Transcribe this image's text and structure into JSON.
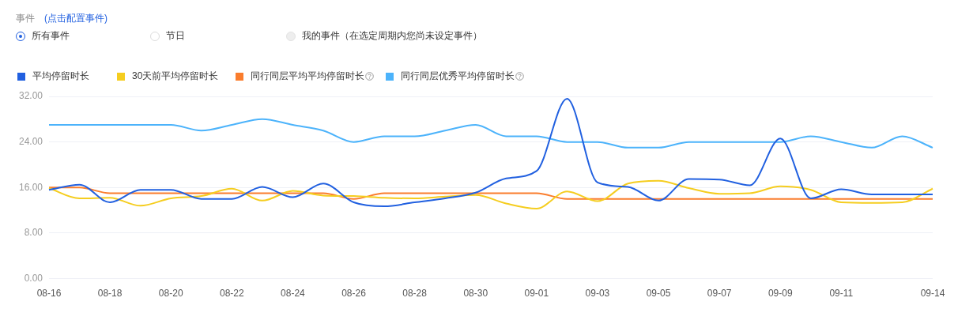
{
  "chart_data": {
    "type": "line",
    "annotations": [
      "事件",
      "(点击配置事件)",
      "所有事件",
      "节日",
      "我的事件（在选定周期内您尚未设定事件）"
    ],
    "categories": [
      "08-16",
      null,
      "08-18",
      null,
      "08-20",
      null,
      "08-22",
      null,
      "08-24",
      null,
      "08-26",
      null,
      "08-28",
      null,
      "08-30",
      null,
      "09-01",
      null,
      "09-03",
      null,
      "09-05",
      null,
      "09-07",
      null,
      "09-09",
      null,
      "09-11",
      null,
      null,
      "09-14"
    ],
    "series": [
      {
        "name": "平均停留时长",
        "color": "#2160e0",
        "values": [
          15.6,
          16.5,
          13.4,
          15.6,
          15.6,
          14.0,
          14.0,
          16.1,
          14.3,
          16.7,
          13.4,
          12.7,
          13.4,
          14.1,
          15.1,
          17.6,
          18.9,
          31.6,
          16.9,
          16.1,
          13.7,
          17.5,
          17.4,
          16.4,
          24.6,
          14.1,
          15.7,
          14.8,
          14.8,
          14.8
        ]
      },
      {
        "name": "30天前平均停留时长",
        "color": "#f5cd1f",
        "values": [
          15.9,
          14.1,
          14.2,
          12.8,
          14.1,
          14.5,
          15.8,
          13.7,
          15.4,
          14.6,
          14.5,
          14.2,
          14.1,
          14.4,
          14.7,
          13.2,
          12.3,
          15.3,
          13.6,
          16.7,
          17.2,
          15.9,
          14.9,
          15.0,
          16.2,
          15.6,
          13.4,
          13.3,
          13.4,
          15.8
        ]
      },
      {
        "name": "同行同层平均平均停留时长",
        "color": "#fa7d2d",
        "values": [
          16,
          16,
          15,
          15,
          15,
          15,
          15,
          15,
          15,
          15,
          14,
          15,
          15,
          15,
          15,
          15,
          15,
          14,
          14,
          14,
          14,
          14,
          14,
          14,
          14,
          14,
          14,
          14,
          14,
          14
        ]
      },
      {
        "name": "同行同层优秀平均停留时长",
        "color": "#4cb3fb",
        "values": [
          27,
          27,
          27,
          27,
          27,
          26,
          27,
          28,
          27,
          26,
          24,
          25,
          25,
          26,
          27,
          25,
          25,
          24,
          24,
          23,
          23,
          24,
          24,
          24,
          24,
          25,
          24,
          23,
          25,
          23
        ]
      }
    ],
    "ylim": [
      0,
      32
    ],
    "yticks": [
      {
        "value": 0,
        "label": "0.00"
      },
      {
        "value": 8,
        "label": "8.00"
      },
      {
        "value": 16,
        "label": "16.00"
      },
      {
        "value": 24,
        "label": "24.00"
      },
      {
        "value": 32,
        "label": "32.00"
      }
    ],
    "grid": "y",
    "legend": "top left",
    "marker": "none",
    "line_style": "solid"
  }
}
